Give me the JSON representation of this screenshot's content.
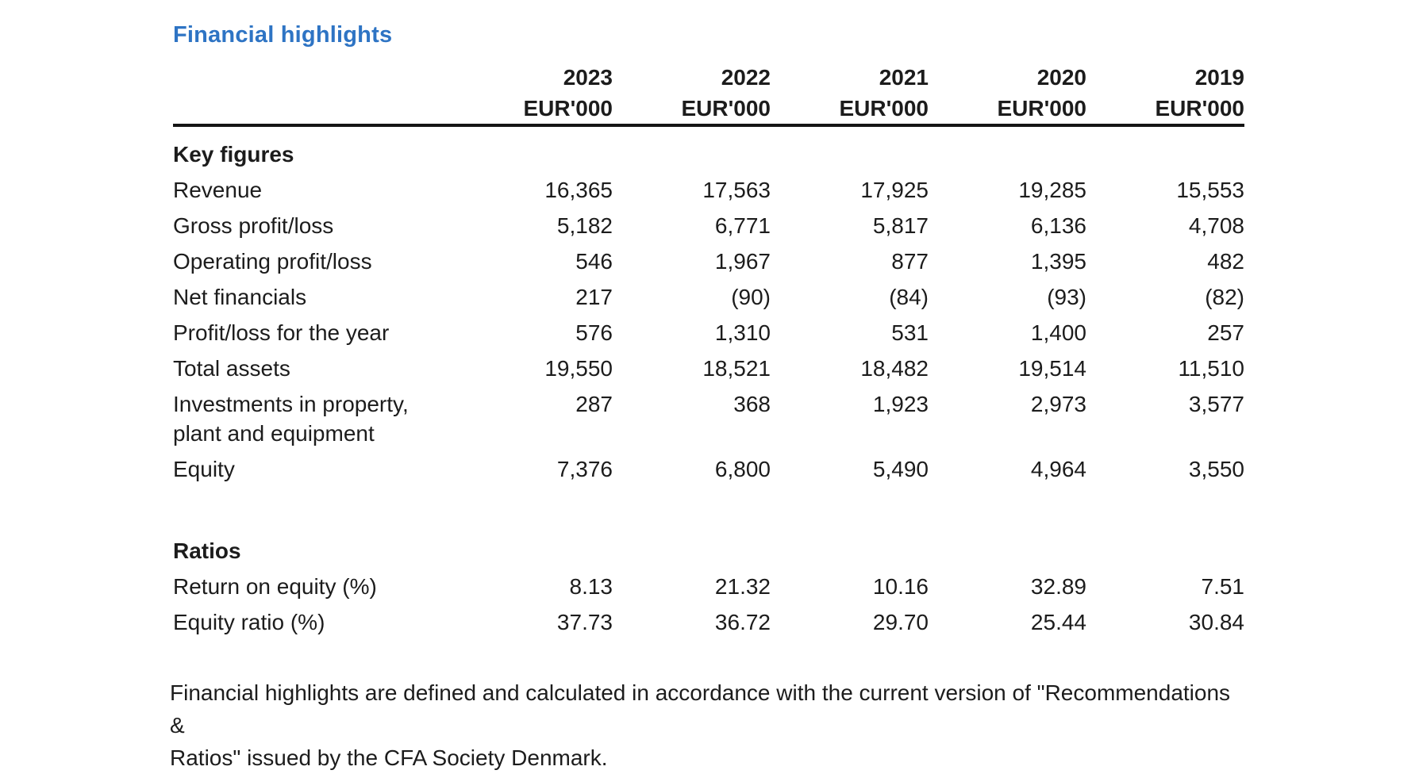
{
  "title": "Financial highlights",
  "currency_unit": "EUR'000",
  "years": [
    "2023",
    "2022",
    "2021",
    "2020",
    "2019"
  ],
  "table": {
    "sections": [
      {
        "heading": "Key figures",
        "rows": [
          {
            "label": "Revenue",
            "values": [
              "16,365",
              "17,563",
              "17,925",
              "19,285",
              "15,553"
            ]
          },
          {
            "label": "Gross profit/loss",
            "values": [
              "5,182",
              "6,771",
              "5,817",
              "6,136",
              "4,708"
            ]
          },
          {
            "label": "Operating profit/loss",
            "values": [
              "546",
              "1,967",
              "877",
              "1,395",
              "482"
            ]
          },
          {
            "label": "Net financials",
            "values": [
              "217",
              "(90)",
              "(84)",
              "(93)",
              "(82)"
            ]
          },
          {
            "label": "Profit/loss for the year",
            "values": [
              "576",
              "1,310",
              "531",
              "1,400",
              "257"
            ]
          },
          {
            "label": "Total assets",
            "values": [
              "19,550",
              "18,521",
              "18,482",
              "19,514",
              "11,510"
            ]
          },
          {
            "label": "Investments in property, plant and equipment",
            "label_lines": [
              "Investments in property,",
              "plant and equipment"
            ],
            "values": [
              "287",
              "368",
              "1,923",
              "2,973",
              "3,577"
            ]
          },
          {
            "label": "Equity",
            "values": [
              "7,376",
              "6,800",
              "5,490",
              "4,964",
              "3,550"
            ]
          }
        ]
      },
      {
        "heading": "Ratios",
        "rows": [
          {
            "label": "Return on equity (%)",
            "values": [
              "8.13",
              "21.32",
              "10.16",
              "32.89",
              "7.51"
            ]
          },
          {
            "label": "Equity ratio (%)",
            "values": [
              "37.73",
              "36.72",
              "29.70",
              "25.44",
              "30.84"
            ]
          }
        ]
      }
    ]
  },
  "footnote": {
    "line1": "Financial highlights are defined and calculated in accordance with the current version of \"Recommendations &",
    "line2": "Ratios\" issued by the CFA Society Denmark."
  },
  "colors": {
    "title_blue": "#2e74c4",
    "text": "#1c1c1c",
    "rule": "#141414"
  }
}
